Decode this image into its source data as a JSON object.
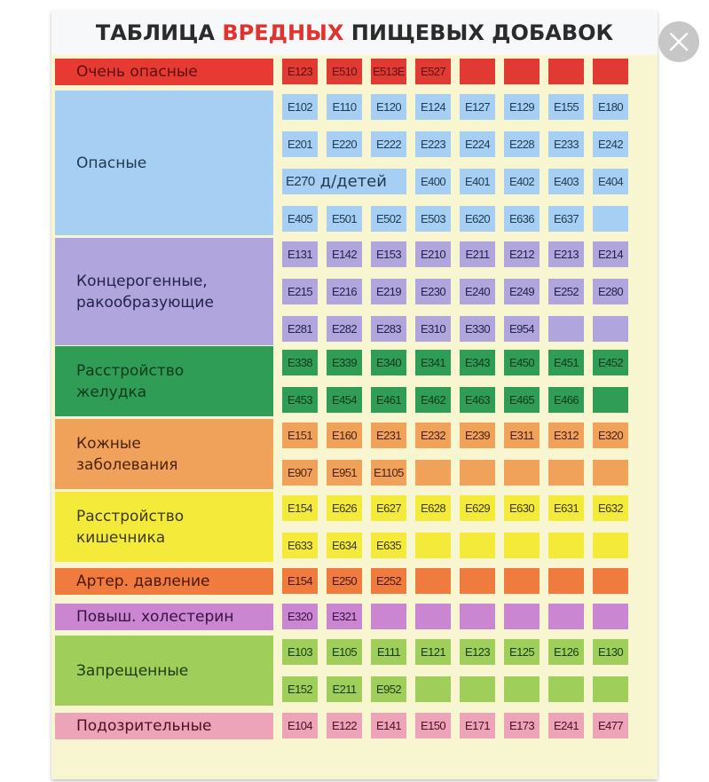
{
  "title": {
    "part1": "ТАБЛИЦА ",
    "highlight": "ВРЕДНЫХ",
    "part2": " ПИЩЕВЫХ ДОБАВОК"
  },
  "close_icon": "close-icon",
  "groups": [
    {
      "key": "very-dangerous",
      "label": "Очень опасные",
      "bg": "#e63a32",
      "chip": "#e03a33",
      "text": "#5a1010",
      "rows": [
        [
          "E123",
          "E510",
          "E513E",
          "E527",
          "",
          "",
          "",
          ""
        ]
      ]
    },
    {
      "key": "dangerous",
      "label": "Опасные",
      "bg": "#a6cff3",
      "chip": "#a6cff3",
      "text": "#1f3a52",
      "rows": [
        [
          "E102",
          "E110",
          "E120",
          "E124",
          "E127",
          "E129",
          "E155",
          "E180"
        ],
        [
          "E201",
          "E220",
          "E222",
          "E223",
          "E224",
          "E228",
          "E233",
          "E242"
        ],
        [
          "E270 д/детей",
          "E400",
          "E401",
          "E402",
          "E403",
          "E404"
        ],
        [
          "E405",
          "E501",
          "E502",
          "E503",
          "E620",
          "E636",
          "E637",
          ""
        ]
      ]
    },
    {
      "key": "carcinogenic",
      "label": "Концерогенные, ракообразующие",
      "bg": "#b0a6dd",
      "chip": "#b0a6dd",
      "text": "#22224a",
      "rows": [
        [
          "E131",
          "E142",
          "E153",
          "E210",
          "E211",
          "E212",
          "E213",
          "E214"
        ],
        [
          "E215",
          "E216",
          "E219",
          "E230",
          "E240",
          "E249",
          "E252",
          "E280"
        ],
        [
          "E281",
          "E282",
          "E283",
          "E310",
          "E330",
          "E954",
          "",
          ""
        ]
      ]
    },
    {
      "key": "stomach",
      "label": "Расстройство желудка",
      "bg": "#2f9d55",
      "chip": "#2f9d55",
      "text": "#0d3a1a",
      "rows": [
        [
          "E338",
          "E339",
          "E340",
          "E341",
          "E343",
          "E450",
          "E451",
          "E452"
        ],
        [
          "E453",
          "E454",
          "E461",
          "E462",
          "E463",
          "E465",
          "E466",
          ""
        ]
      ]
    },
    {
      "key": "skin",
      "label": "Кожные заболевания",
      "bg": "#f1a25a",
      "chip": "#f1a25a",
      "text": "#4a2208",
      "rows": [
        [
          "E151",
          "E160",
          "E231",
          "E232",
          "E239",
          "E311",
          "E312",
          "E320"
        ],
        [
          "E907",
          "E951",
          "E1105",
          "",
          "",
          "",
          "",
          ""
        ]
      ]
    },
    {
      "key": "intestine",
      "label": "Расстройство кишечника",
      "bg": "#f4ea3a",
      "chip": "#f4ea3a",
      "text": "#3a3a08",
      "rows": [
        [
          "E154",
          "E626",
          "E627",
          "E628",
          "E629",
          "E630",
          "E631",
          "E632"
        ],
        [
          "E633",
          "E634",
          "E635",
          "",
          "",
          "",
          "",
          ""
        ]
      ]
    },
    {
      "key": "pressure",
      "label": "Артер. давление",
      "bg": "#ef7b3e",
      "chip": "#ef7b3e",
      "text": "#4a1808",
      "rows": [
        [
          "E154",
          "E250",
          "E252",
          "",
          "",
          "",
          "",
          ""
        ]
      ]
    },
    {
      "key": "cholesterol",
      "label": "Повыш. холестерин",
      "bg": "#cb86d2",
      "chip": "#cb86d2",
      "text": "#3a1042",
      "rows": [
        [
          "E320",
          "E321",
          "",
          "",
          "",
          "",
          "",
          ""
        ]
      ]
    },
    {
      "key": "forbidden",
      "label": "Запрещенные",
      "bg": "#9fcf5a",
      "chip": "#9fcf5a",
      "text": "#1e3a08",
      "rows": [
        [
          "E103",
          "E105",
          "E111",
          "E121",
          "E123",
          "E125",
          "E126",
          "E130"
        ],
        [
          "E152",
          "E211",
          "E952",
          "",
          "",
          "",
          "",
          ""
        ]
      ]
    },
    {
      "key": "suspicious",
      "label": "Подозрительные",
      "bg": "#eea4b8",
      "chip": "#eea4b8",
      "text": "#4a1024",
      "rows": [
        [
          "E104",
          "E122",
          "E141",
          "E150",
          "E171",
          "E173",
          "E241",
          "E477"
        ]
      ]
    }
  ],
  "layout": {
    "group_tops": [
      66,
      106,
      272,
      394,
      476,
      558,
      640,
      680,
      720,
      803
    ],
    "row_pitch": 42
  }
}
